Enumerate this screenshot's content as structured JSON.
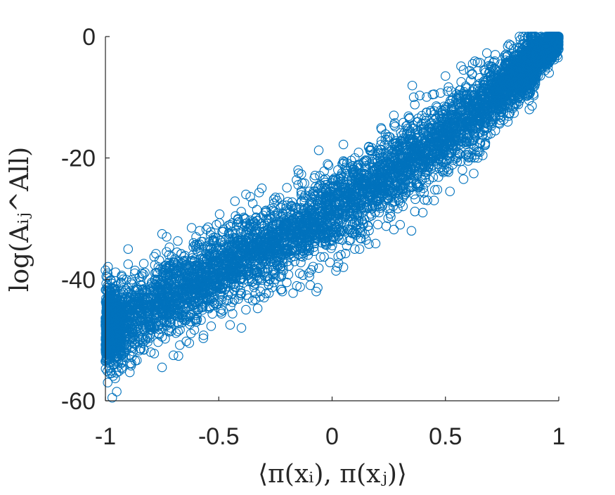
{
  "chart_data": {
    "type": "scatter",
    "title": "",
    "xlabel": "⟨π(xᵢ), π(xⱼ)⟩",
    "ylabel": "log(Aᵢⱼ^All)",
    "xlim": [
      -1,
      1
    ],
    "ylim": [
      -60,
      0
    ],
    "xticks": [
      -1,
      -0.5,
      0,
      0.5,
      1
    ],
    "xtick_labels": [
      "-1",
      "-0.5",
      "0",
      "0.5",
      "1"
    ],
    "yticks": [
      -60,
      -40,
      -20,
      0
    ],
    "ytick_labels": [
      "-60",
      "-40",
      "-20",
      "0"
    ],
    "grid": false,
    "legend": "none",
    "marker": "open-circle",
    "color": "#0072BD",
    "series": [
      {
        "trend": [
          [
            -1.0,
            -48.0
          ],
          [
            -0.9,
            -46.5
          ],
          [
            -0.7,
            -42.5
          ],
          [
            -0.5,
            -38.5
          ],
          [
            -0.3,
            -34.5
          ],
          [
            -0.1,
            -31.0
          ],
          [
            0.0,
            -28.5
          ],
          [
            0.2,
            -24.0
          ],
          [
            0.4,
            -19.0
          ],
          [
            0.6,
            -13.5
          ],
          [
            0.8,
            -7.0
          ],
          [
            1.0,
            0.0
          ]
        ],
        "points": [
          [
            -1.0,
            -38.5
          ],
          [
            -0.99,
            -39.0
          ],
          [
            -0.99,
            -41.0
          ],
          [
            -1.0,
            -47.0
          ],
          [
            -1.0,
            -53.5
          ],
          [
            -0.99,
            -57.0
          ],
          [
            -0.97,
            -59.5
          ],
          [
            -0.95,
            -58.5
          ],
          [
            -0.98,
            -55.5
          ],
          [
            -0.96,
            -51.0
          ],
          [
            -0.9,
            -35.0
          ],
          [
            -0.9,
            -37.5
          ],
          [
            -0.84,
            -39.0
          ],
          [
            -0.78,
            -40.0
          ],
          [
            -0.75,
            -32.5
          ],
          [
            -0.73,
            -33.0
          ],
          [
            -0.72,
            -36.0
          ],
          [
            -0.62,
            -31.5
          ],
          [
            -0.6,
            -33.0
          ],
          [
            -0.55,
            -34.5
          ],
          [
            -0.51,
            -31.0
          ],
          [
            -0.45,
            -31.0
          ],
          [
            -0.38,
            -26.0
          ],
          [
            -0.35,
            -27.5
          ],
          [
            -0.31,
            -25.0
          ],
          [
            -0.25,
            -26.5
          ],
          [
            -0.15,
            -22.0
          ],
          [
            -0.1,
            -25.5
          ],
          [
            -0.02,
            -21.0
          ],
          [
            0.05,
            -20.5
          ],
          [
            0.1,
            -20.0
          ],
          [
            0.15,
            -20.5
          ],
          [
            0.2,
            -19.5
          ],
          [
            0.33,
            -16.0
          ],
          [
            0.36,
            -10.0
          ],
          [
            0.45,
            -9.5
          ],
          [
            0.5,
            -6.5
          ],
          [
            0.58,
            -5.5
          ],
          [
            0.62,
            -4.5
          ],
          [
            0.72,
            -3.0
          ],
          [
            0.8,
            -2.0
          ],
          [
            0.9,
            -1.0
          ],
          [
            0.97,
            -0.5
          ],
          [
            1.0,
            -0.3
          ],
          [
            -0.8,
            -52.0
          ],
          [
            -0.75,
            -54.5
          ],
          [
            -0.7,
            -52.5
          ],
          [
            -0.63,
            -50.5
          ],
          [
            -0.6,
            -47.0
          ],
          [
            -0.45,
            -47.5
          ],
          [
            -0.4,
            -48.0
          ],
          [
            -0.38,
            -45.0
          ],
          [
            -0.35,
            -43.5
          ],
          [
            -0.3,
            -43.0
          ],
          [
            -0.2,
            -40.5
          ],
          [
            -0.1,
            -39.5
          ],
          [
            -0.07,
            -42.0
          ],
          [
            0.05,
            -38.0
          ],
          [
            0.1,
            -35.0
          ],
          [
            0.15,
            -33.5
          ],
          [
            0.3,
            -31.0
          ],
          [
            0.35,
            -32.0
          ],
          [
            0.4,
            -29.0
          ],
          [
            0.45,
            -27.0
          ],
          [
            0.52,
            -25.5
          ],
          [
            0.58,
            -23.5
          ],
          [
            0.6,
            -20.5
          ],
          [
            0.7,
            -16.0
          ],
          [
            0.72,
            -15.5
          ],
          [
            0.8,
            -11.5
          ],
          [
            0.85,
            -9.5
          ],
          [
            0.9,
            -6.5
          ],
          [
            0.95,
            -4.5
          ]
        ]
      }
    ],
    "n_generated_points": 7000,
    "spread": 3.2,
    "seed": 12345
  }
}
